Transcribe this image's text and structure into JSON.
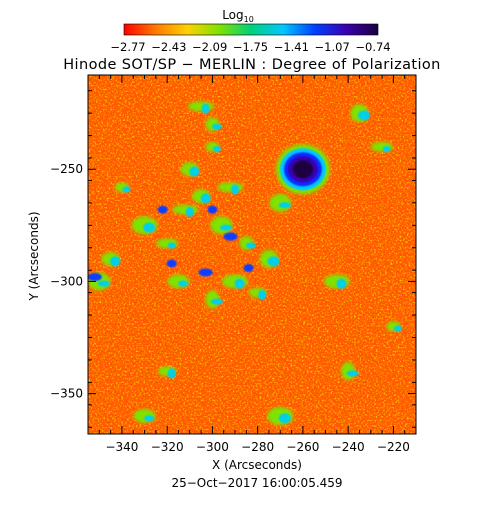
{
  "colorbar": {
    "label": "Log",
    "label_sub": "10",
    "tick_labels": [
      "-2.77",
      "-2.43",
      "-2.09",
      "-1.75",
      "-1.41",
      "-1.07",
      "-0.74"
    ],
    "colors": [
      "#ff0000",
      "#ff7a00",
      "#ffd000",
      "#7fe200",
      "#00d07a",
      "#00c8ff",
      "#0040ff",
      "#3a00b0",
      "#1a0040"
    ]
  },
  "chart_data": {
    "type": "heatmap",
    "title": "Hinode SOT/SP − MERLIN : Degree of Polarization",
    "xlabel": "X (Arcseconds)",
    "ylabel": "Y (Arcseconds)",
    "xlim": [
      -355,
      -210
    ],
    "ylim": [
      -368,
      -208
    ],
    "xticks": [
      -340,
      -320,
      -300,
      -280,
      -260,
      -240,
      -220
    ],
    "yticks": [
      -250,
      -300,
      -350
    ],
    "xtick_labels": [
      "−340",
      "−320",
      "−300",
      "−280",
      "−260",
      "−240",
      "−220"
    ],
    "ytick_labels": [
      "−250",
      "−300",
      "−350"
    ],
    "value_range": [
      -2.77,
      -0.74
    ],
    "value_scale": "log10",
    "features": [
      {
        "x": -260,
        "y": -250,
        "value": -0.74
      },
      {
        "x": -300,
        "y": -280,
        "value": -1.41
      },
      {
        "x": -353,
        "y": -298,
        "value": -1.41
      }
    ],
    "timestamp": "25−Oct−2017 16:00:05.459"
  }
}
